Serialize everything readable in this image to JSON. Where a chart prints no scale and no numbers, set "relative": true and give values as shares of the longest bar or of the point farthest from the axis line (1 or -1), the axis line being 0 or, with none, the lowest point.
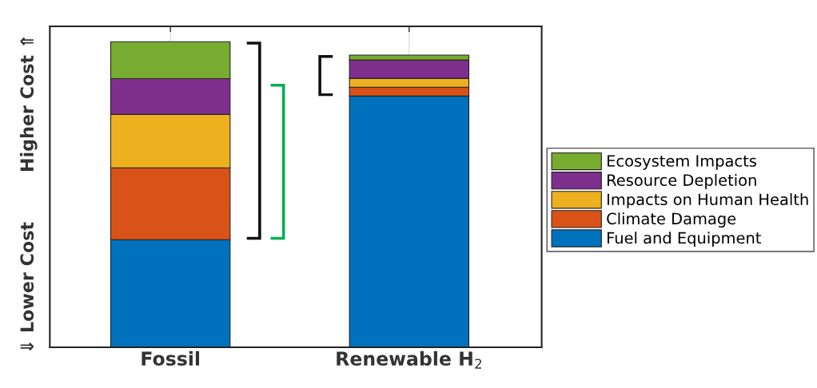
{
  "chart_data": {
    "type": "bar",
    "stacked": true,
    "relative": true,
    "ylabel": "⇓ Lower Cost        Higher Cost ⇑",
    "categories": [
      "Fossil",
      "Renewable H$_{2}$"
    ],
    "series": [
      {
        "name": "Fuel and Equipment",
        "color": "#0072bd",
        "values": [
          0.352,
          0.822
        ]
      },
      {
        "name": "Climate Damage",
        "color": "#d95319",
        "values": [
          0.235,
          0.029
        ]
      },
      {
        "name": "Impacts on Human Health",
        "color": "#edb120",
        "values": [
          0.175,
          0.029
        ]
      },
      {
        "name": "Resource Depletion",
        "color": "#7e2f8e",
        "values": [
          0.117,
          0.06
        ]
      },
      {
        "name": "Ecosystem Impacts",
        "color": "#77ac30",
        "values": [
          0.121,
          0.016
        ]
      }
    ],
    "grid": "x",
    "legend": "right"
  }
}
